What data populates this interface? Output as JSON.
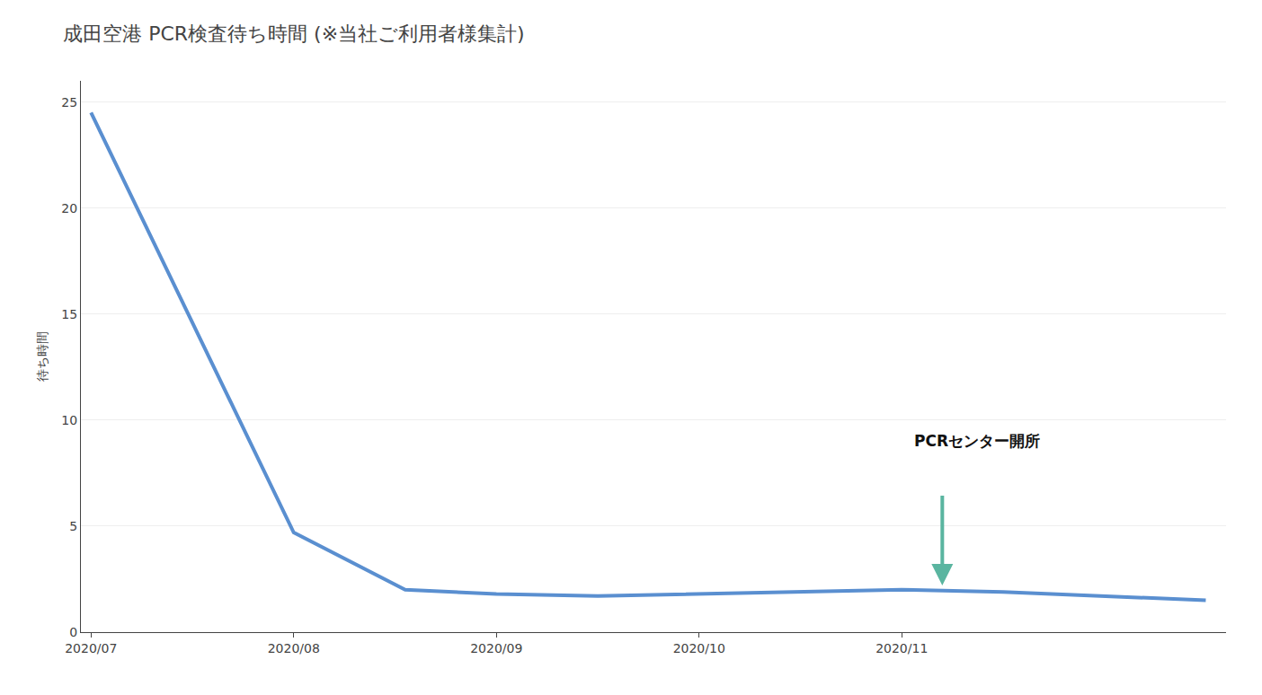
{
  "chart_data": {
    "type": "line",
    "title": "成田空港 PCR検査待ち時間 (※当社ご利用者様集計)",
    "ylabel": "待ち時間",
    "x": [
      0,
      1.0,
      1.55,
      2.0,
      2.5,
      3.0,
      3.5,
      4.0,
      4.5,
      5.0,
      5.5
    ],
    "series": [
      {
        "name": "待ち時間",
        "color": "#5a8fd0",
        "values": [
          24.5,
          4.7,
          2.0,
          1.8,
          1.7,
          1.8,
          1.9,
          2.0,
          1.9,
          1.7,
          1.5
        ]
      }
    ],
    "xlim": [
      -0.05,
      5.6
    ],
    "xticks": [
      {
        "value": 0,
        "label": "2020/07"
      },
      {
        "value": 1.0,
        "label": "2020/08"
      },
      {
        "value": 2.0,
        "label": "2020/09"
      },
      {
        "value": 3.0,
        "label": "2020/10"
      },
      {
        "value": 4.0,
        "label": "2020/11"
      }
    ],
    "ylim": [
      0,
      26
    ],
    "yticks": [
      0,
      5,
      10,
      15,
      20,
      25
    ],
    "grid": "y",
    "annotations": [
      {
        "text": "PCRセンター開所",
        "x": 4.05,
        "y": 9.0,
        "arrow": {
          "x": 4.2,
          "y_start": 6.5,
          "y_end": 2.2,
          "color": "#5ab5a0"
        }
      }
    ]
  }
}
